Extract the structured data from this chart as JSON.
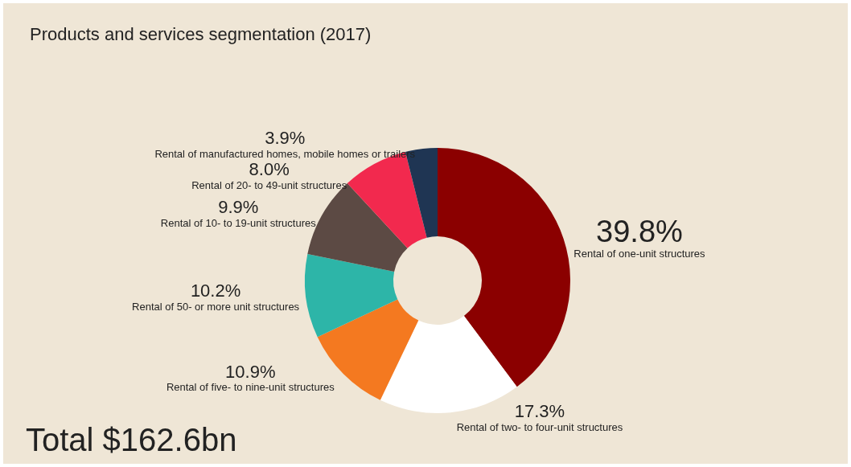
{
  "chart_data": {
    "type": "donut",
    "title": "Products and services segmentation (2017)",
    "categories": [
      "Rental of one-unit structures",
      "Rental of two- to four-unit structures",
      "Rental of five- to nine-unit structures",
      "Rental of 50- or more unit structures",
      "Rental of 10- to 19-unit structures",
      "Rental of 20- to 49-unit structures",
      "Rental of manufactured homes, mobile homes or trailers"
    ],
    "values": [
      39.8,
      17.3,
      10.9,
      10.2,
      9.9,
      8.0,
      3.9
    ],
    "value_labels": [
      "39.8%",
      "17.3%",
      "10.9%",
      "10.2%",
      "9.9%",
      "8.0%",
      "3.9%"
    ],
    "colors": [
      "#8b0000",
      "#ffffff",
      "#f47920",
      "#2db5a8",
      "#5c4a44",
      "#f2294e",
      "#1f3553"
    ],
    "annotations": [
      "Total $162.6bn"
    ],
    "legend": false
  }
}
